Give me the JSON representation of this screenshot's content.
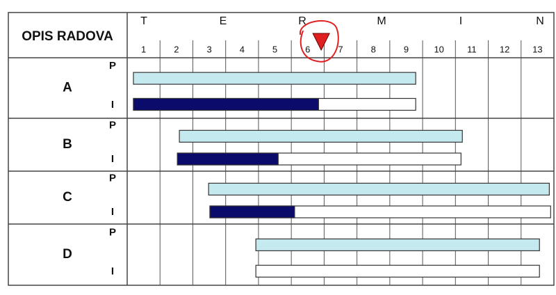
{
  "chart_data": {
    "type": "gantt",
    "header": "OPIS RADOVA",
    "timeline_letters": [
      "T",
      "E",
      "R",
      "M",
      "I",
      "N"
    ],
    "xlim": [
      0.5,
      13.5
    ],
    "xticks": [
      1,
      2,
      3,
      4,
      5,
      6,
      7,
      8,
      9,
      10,
      11,
      12,
      13
    ],
    "planned_color": "#c4eaf0",
    "progress_color": "#0b0b6b",
    "marker_color": "#e02020",
    "marker": 6.41,
    "tasks": [
      {
        "name": "A",
        "planned_label": "P",
        "actual_label": "I",
        "planned": [
          0.69,
          9.29
        ],
        "actual": [
          0.69,
          9.29
        ],
        "progress": 6.33
      },
      {
        "name": "B",
        "planned_label": "P",
        "actual_label": "I",
        "planned": [
          2.09,
          10.71
        ],
        "actual": [
          2.03,
          10.67
        ],
        "progress": 5.1
      },
      {
        "name": "C",
        "planned_label": "P",
        "actual_label": "I",
        "planned": [
          2.98,
          13.36
        ],
        "actual": [
          3.02,
          13.4
        ],
        "progress": 5.6
      },
      {
        "name": "D",
        "planned_label": "P",
        "actual_label": "I",
        "planned": [
          4.42,
          13.06
        ],
        "actual": [
          4.42,
          13.06
        ],
        "progress": 4.42
      }
    ]
  }
}
